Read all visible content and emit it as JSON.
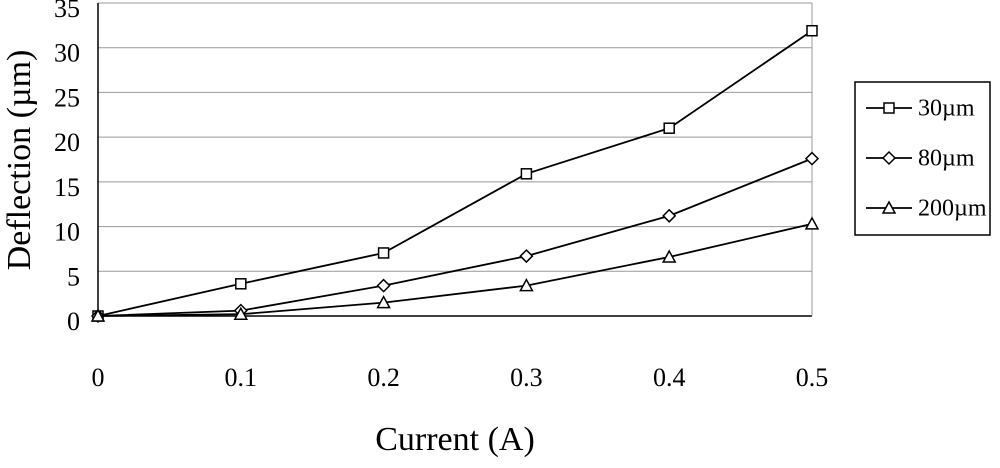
{
  "chart_data": {
    "type": "line",
    "x_label": "Current (A)",
    "y_label": "Deflection (µm)",
    "x": [
      0,
      0.1,
      0.2,
      0.3,
      0.4,
      0.5
    ],
    "series": [
      {
        "name": "30µm",
        "marker": "square",
        "color": "#000000",
        "values": [
          0,
          3.6,
          7.05,
          15.9,
          21.0,
          31.9
        ]
      },
      {
        "name": "80µm",
        "marker": "diamond",
        "color": "#000000",
        "values": [
          0,
          0.6,
          3.4,
          6.7,
          11.2,
          17.6
        ]
      },
      {
        "name": "200µm",
        "marker": "triangle",
        "color": "#000000",
        "values": [
          0,
          0.2,
          1.5,
          3.4,
          6.6,
          10.3
        ]
      }
    ],
    "xlim": [
      0,
      0.5
    ],
    "xticks": [
      0,
      0.1,
      0.2,
      0.3,
      0.4,
      0.5
    ],
    "ylim": [
      0,
      35
    ],
    "yticks": [
      0,
      5,
      10,
      15,
      20,
      25,
      30,
      35
    ],
    "grid": true,
    "legend": "right"
  }
}
